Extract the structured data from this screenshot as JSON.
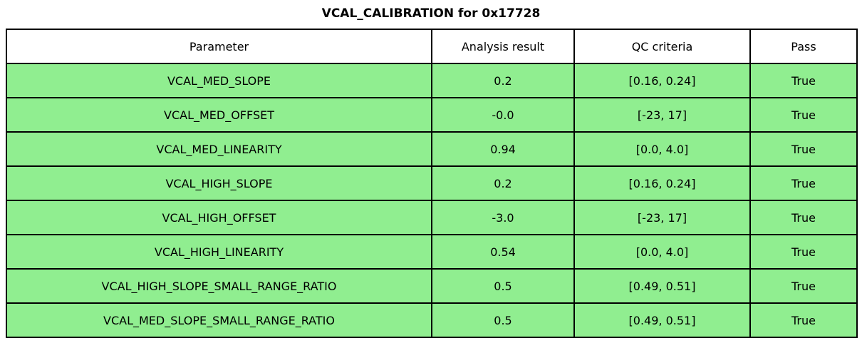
{
  "title": "VCAL_CALIBRATION for 0x17728",
  "colors": {
    "header_bg": "#FFFFFF",
    "row_bg": "#90EE90",
    "border": "#000000",
    "text": "#000000"
  },
  "chart_data": {
    "type": "table",
    "title": "VCAL_CALIBRATION for 0x17728",
    "columns": [
      "Parameter",
      "Analysis result",
      "QC criteria",
      "Pass"
    ],
    "rows": [
      [
        "VCAL_MED_SLOPE",
        "0.2",
        "[0.16, 0.24]",
        "True"
      ],
      [
        "VCAL_MED_OFFSET",
        "-0.0",
        "[-23, 17]",
        "True"
      ],
      [
        "VCAL_MED_LINEARITY",
        "0.94",
        "[0.0, 4.0]",
        "True"
      ],
      [
        "VCAL_HIGH_SLOPE",
        "0.2",
        "[0.16, 0.24]",
        "True"
      ],
      [
        "VCAL_HIGH_OFFSET",
        "-3.0",
        "[-23, 17]",
        "True"
      ],
      [
        "VCAL_HIGH_LINEARITY",
        "0.54",
        "[0.0, 4.0]",
        "True"
      ],
      [
        "VCAL_HIGH_SLOPE_SMALL_RANGE_RATIO",
        "0.5",
        "[0.49, 0.51]",
        "True"
      ],
      [
        "VCAL_MED_SLOPE_SMALL_RANGE_RATIO",
        "0.5",
        "[0.49, 0.51]",
        "True"
      ]
    ],
    "header_row_color": "#FFFFFF",
    "data_row_color": "#90EE90",
    "all_pass": true,
    "legend_position": "none",
    "grid": true
  }
}
